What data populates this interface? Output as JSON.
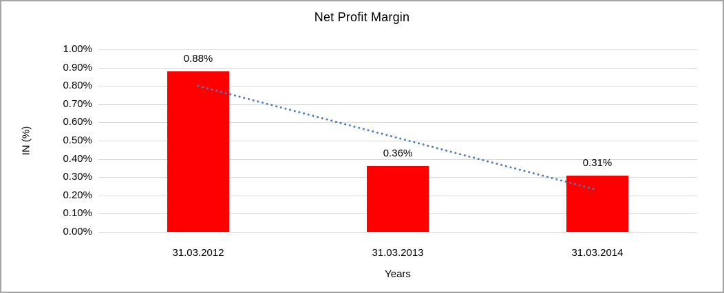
{
  "chart_data": {
    "type": "bar",
    "title": "Net Profit Margin",
    "xlabel": "Years",
    "ylabel": "IN (%)",
    "categories": [
      "31.03.2012",
      "31.03.2013",
      "31.03.2014"
    ],
    "values": [
      0.88,
      0.36,
      0.31
    ],
    "data_labels": [
      "0.88%",
      "0.36%",
      "0.31%"
    ],
    "ylim": [
      0,
      1.0
    ],
    "ytick_step": 0.1,
    "ytick_labels": [
      "1.00%",
      "0.90%",
      "0.80%",
      "0.70%",
      "0.60%",
      "0.50%",
      "0.40%",
      "0.30%",
      "0.20%",
      "0.10%",
      "0.00%"
    ],
    "grid": true,
    "legend": "none",
    "bar_color": "#ff0000",
    "gridline_color": "#d9d9d9",
    "text_color": "#000000",
    "trendline": {
      "type": "linear",
      "style": "dotted",
      "color": "#4a7ebb",
      "start_value": 0.8,
      "end_value": 0.23
    }
  },
  "frame": {
    "background_color": "#ffffff",
    "border_color": "#a6a6a6"
  }
}
